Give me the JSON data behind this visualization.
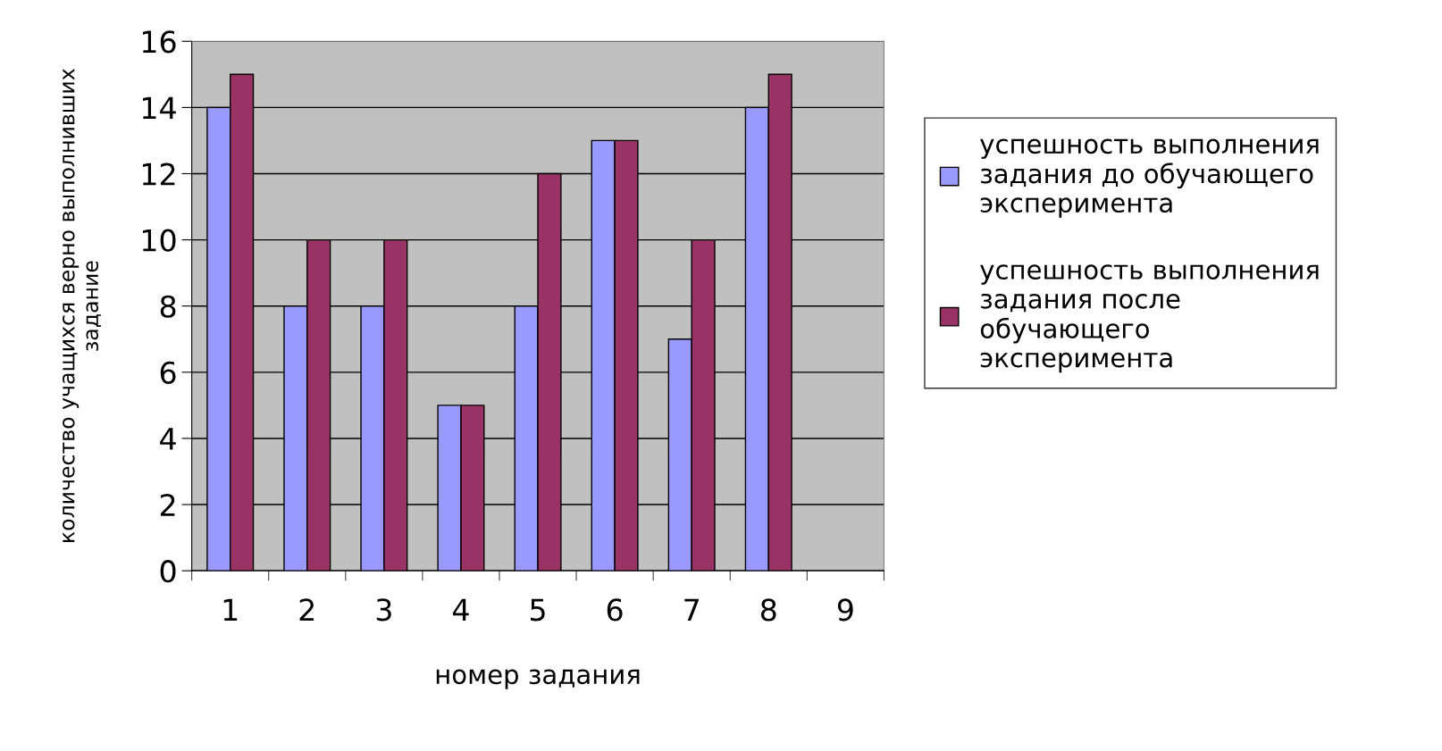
{
  "chart_data": {
    "type": "bar",
    "xlabel": "номер задания",
    "ylabel": "количество учащихся верно выполнивших\nзадание",
    "categories": [
      "1",
      "2",
      "3",
      "4",
      "5",
      "6",
      "7",
      "8",
      "9"
    ],
    "series": [
      {
        "name": "успешность выполнения\nзадания до обучающего\nэксперимента",
        "color": "#9999ff",
        "values": [
          14,
          8,
          8,
          5,
          8,
          13,
          7,
          14,
          null
        ]
      },
      {
        "name": "успешность выполнения\nзадания после\nобучающего\nэксперимента",
        "color": "#993366",
        "values": [
          15,
          10,
          10,
          5,
          12,
          13,
          10,
          15,
          null
        ]
      }
    ],
    "ylim": [
      0,
      16
    ],
    "yticks": [
      0,
      2,
      4,
      6,
      8,
      10,
      12,
      14,
      16
    ],
    "grid": "y",
    "legend": "right"
  }
}
